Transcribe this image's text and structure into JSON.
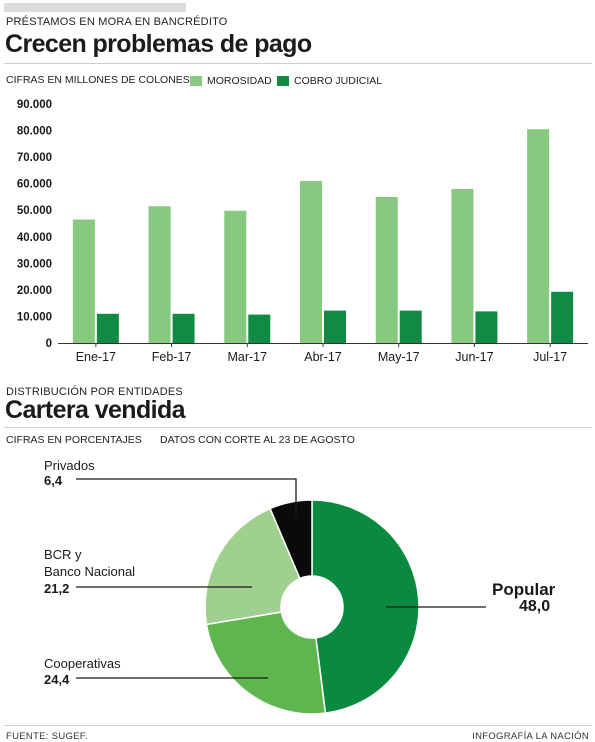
{
  "bar_section": {
    "kicker": "PRÉSTAMOS EN MORA EN BANCRÉDITO",
    "title": "Crecen problemas de pago",
    "units_note": "CIFRAS EN MILLONES DE COLONES"
  },
  "pie_section": {
    "kicker": "DISTRIBUCIÓN POR ENTIDADES",
    "title": "Cartera vendida",
    "units_note": "CIFRAS EN PORCENTAJES",
    "date_note": "DATOS CON CORTE AL 23 DE AGOSTO",
    "labels": {
      "privados": "Privados",
      "bcr_line1": "BCR y",
      "bcr_line2": "Banco Nacional",
      "cooperativas": "Cooperativas",
      "popular": "Popular"
    },
    "values_text": {
      "privados": "6,4",
      "bcr": "21,2",
      "cooperativas": "24,4",
      "popular": "48,0"
    }
  },
  "footer": {
    "source": "FUENTE: SUGEF.",
    "credit": "INFOGRAFÍA LA NACIÓN"
  },
  "colors": {
    "morosidad": "#86c97f",
    "cobro_judicial": "#138a43",
    "popular": "#0a8a3e",
    "cooperativas": "#5fb64f",
    "bcr": "#9fd08f",
    "privados": "#0a0a0a"
  },
  "chart_data": [
    {
      "type": "bar",
      "categories": [
        "Ene-17",
        "Feb-17",
        "Mar-17",
        "Abr-17",
        "May-17",
        "Jun-17",
        "Jul-17"
      ],
      "series": [
        {
          "name": "MOROSIDAD",
          "values": [
            46500,
            51500,
            49800,
            61000,
            55000,
            58000,
            80500
          ]
        },
        {
          "name": "COBRO JUDICIAL",
          "values": [
            11000,
            11000,
            10700,
            12200,
            12200,
            11900,
            19300
          ]
        }
      ],
      "ylim": [
        0,
        90000
      ],
      "yticks": [
        "0",
        "10.000",
        "20.000",
        "30.000",
        "40.000",
        "50.000",
        "60.000",
        "70.000",
        "80.000",
        "90.000"
      ],
      "legend": "top",
      "grid": false
    },
    {
      "type": "pie",
      "donut": true,
      "slices": [
        {
          "label": "Popular",
          "value": 48.0
        },
        {
          "label": "Cooperativas",
          "value": 24.4
        },
        {
          "label": "BCR y Banco Nacional",
          "value": 21.2
        },
        {
          "label": "Privados",
          "value": 6.4
        }
      ]
    }
  ]
}
